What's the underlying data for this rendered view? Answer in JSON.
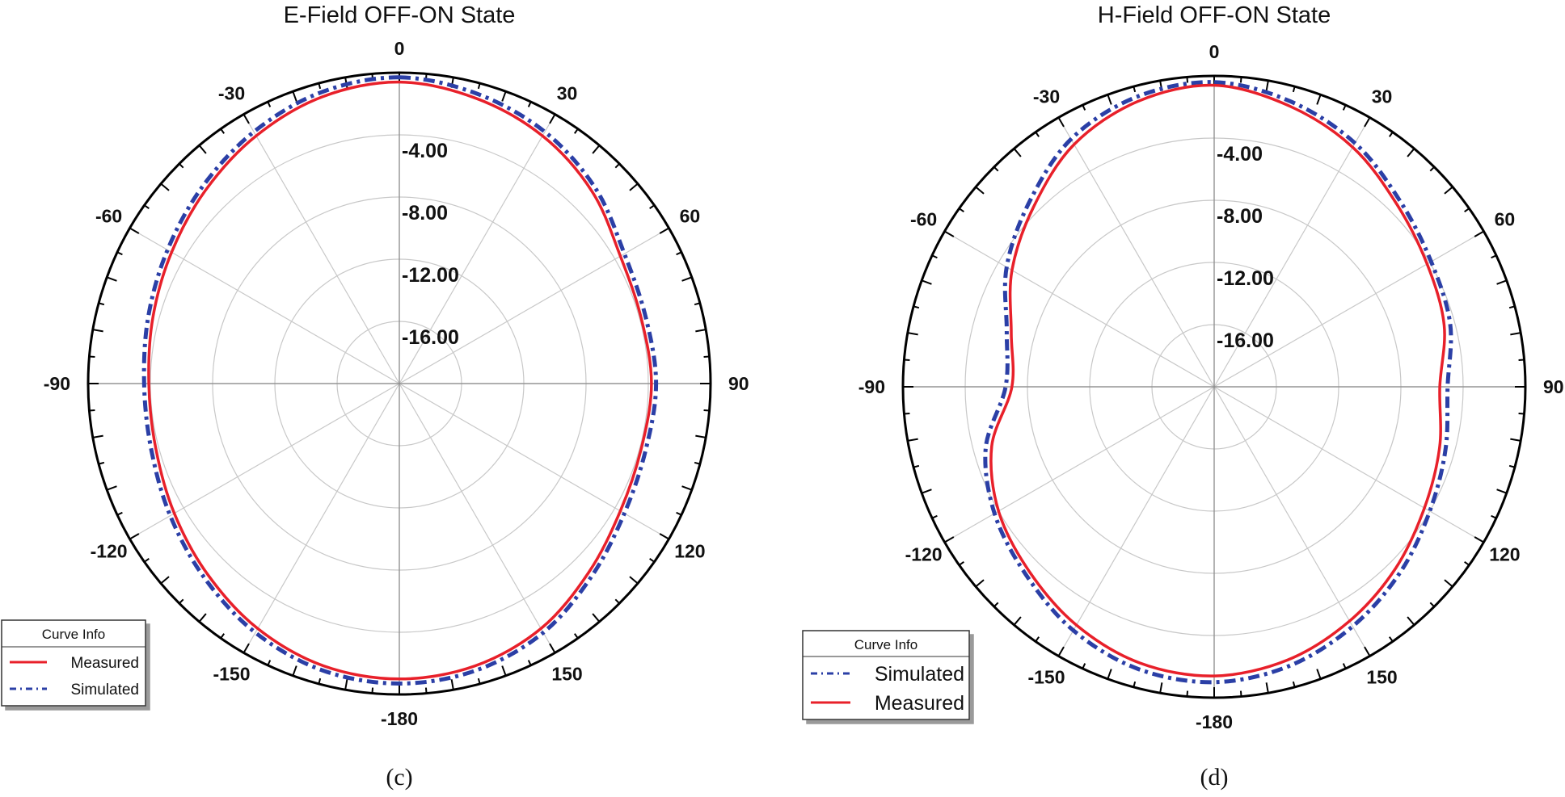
{
  "figure": {
    "captions": [
      "(c)",
      "(d)"
    ],
    "colors": {
      "measured": "#e8202a",
      "simulated": "#2b3fa6",
      "grid": "#c8c8c8",
      "axis": "#000000"
    }
  },
  "chart_data": [
    {
      "type": "polar-line",
      "title": "E-Field OFF-ON State",
      "angle_ticks": [
        "0",
        "30",
        "60",
        "90",
        "120",
        "150",
        "-180",
        "-150",
        "-120",
        "-90",
        "-60",
        "-30"
      ],
      "angle_tick_values": [
        0,
        30,
        60,
        90,
        120,
        150,
        180,
        -150,
        -120,
        -90,
        -60,
        -30
      ],
      "radial_ticks": [
        "-4.00",
        "-8.00",
        "-12.00",
        "-16.00"
      ],
      "radial_tick_values": [
        -4,
        -8,
        -12,
        -16
      ],
      "rlim": [
        -20,
        0
      ],
      "legend": {
        "title": "Curve Info",
        "entries": [
          "Measured",
          "Simulated"
        ],
        "placement": "bottom-left"
      },
      "series": [
        {
          "name": "Measured",
          "style": "solid",
          "theta": [
            0,
            15,
            30,
            45,
            60,
            75,
            90,
            105,
            120,
            135,
            150,
            165,
            180,
            195,
            210,
            225,
            240,
            255,
            270,
            285,
            300,
            315,
            330,
            345
          ],
          "r_db": [
            -0.6,
            -1.0,
            -1.6,
            -2.5,
            -3.6,
            -3.9,
            -3.8,
            -3.9,
            -3.6,
            -2.8,
            -1.8,
            -1.2,
            -1.0,
            -1.2,
            -1.8,
            -2.6,
            -3.3,
            -3.8,
            -3.9,
            -3.6,
            -3.1,
            -2.4,
            -1.6,
            -0.9
          ]
        },
        {
          "name": "Simulated",
          "style": "dash-dot",
          "theta": [
            0,
            15,
            30,
            45,
            60,
            75,
            90,
            105,
            120,
            135,
            150,
            165,
            180,
            195,
            210,
            225,
            240,
            255,
            270,
            285,
            300,
            315,
            330,
            345
          ],
          "r_db": [
            -0.3,
            -0.7,
            -1.3,
            -2.2,
            -3.3,
            -3.6,
            -3.5,
            -3.6,
            -3.3,
            -2.5,
            -1.5,
            -0.9,
            -0.7,
            -0.9,
            -1.5,
            -2.3,
            -3.0,
            -3.5,
            -3.6,
            -3.3,
            -2.8,
            -2.1,
            -1.3,
            -0.6
          ]
        }
      ]
    },
    {
      "type": "polar-line",
      "title": "H-Field OFF-ON State",
      "angle_ticks": [
        "0",
        "30",
        "60",
        "90",
        "120",
        "150",
        "-180",
        "-150",
        "-120",
        "-90",
        "-60",
        "-30"
      ],
      "angle_tick_values": [
        0,
        30,
        60,
        90,
        120,
        150,
        180,
        -150,
        -120,
        -90,
        -60,
        -30
      ],
      "radial_ticks": [
        "-4.00",
        "-8.00",
        "-12.00",
        "-16.00"
      ],
      "radial_tick_values": [
        -4,
        -8,
        -12,
        -16
      ],
      "rlim": [
        -20,
        0
      ],
      "legend": {
        "title": "Curve Info",
        "entries": [
          "Simulated",
          "Measured"
        ],
        "placement": "bottom-left"
      },
      "series": [
        {
          "name": "Measured",
          "style": "solid",
          "theta": [
            0,
            15,
            30,
            45,
            60,
            75,
            90,
            105,
            120,
            135,
            150,
            165,
            180,
            195,
            210,
            225,
            240,
            255,
            270,
            285,
            300,
            315,
            330,
            345
          ],
          "r_db": [
            -0.6,
            -1.3,
            -2.2,
            -3.4,
            -4.2,
            -4.7,
            -5.5,
            -5.0,
            -4.4,
            -3.5,
            -2.6,
            -1.8,
            -1.4,
            -1.6,
            -2.3,
            -3.2,
            -4.0,
            -5.2,
            -7.0,
            -6.5,
            -5.0,
            -3.6,
            -2.0,
            -1.0
          ]
        },
        {
          "name": "Simulated",
          "style": "dash-dot",
          "theta": [
            0,
            15,
            30,
            45,
            60,
            75,
            90,
            105,
            120,
            135,
            150,
            165,
            180,
            195,
            210,
            225,
            240,
            255,
            270,
            285,
            300,
            315,
            330,
            345
          ],
          "r_db": [
            -0.4,
            -1.0,
            -1.9,
            -3.1,
            -3.9,
            -4.3,
            -5.0,
            -4.6,
            -4.0,
            -3.1,
            -2.2,
            -1.4,
            -1.0,
            -1.2,
            -1.9,
            -2.9,
            -3.7,
            -4.8,
            -6.6,
            -6.2,
            -4.6,
            -3.2,
            -1.6,
            -0.7
          ]
        }
      ]
    }
  ]
}
